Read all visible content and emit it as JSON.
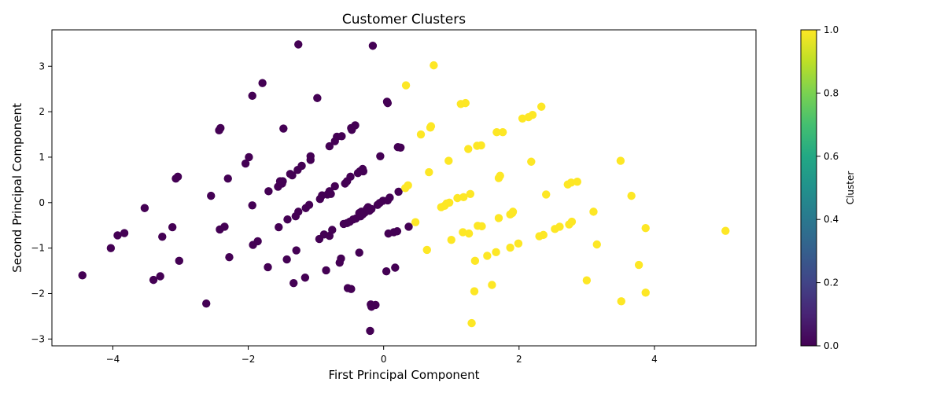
{
  "chart_data": {
    "type": "scatter",
    "title": "Customer Clusters",
    "xlabel": "First Principal Component",
    "ylabel": "Second Principal Component",
    "xlim": [
      -4.9,
      5.5
    ],
    "ylim": [
      -3.15,
      3.8
    ],
    "xticks": [
      -4,
      -2,
      0,
      2,
      4
    ],
    "yticks": [
      -3,
      -2,
      -1,
      0,
      1,
      2,
      3
    ],
    "xtick_labels": [
      "−4",
      "−2",
      "0",
      "2",
      "4"
    ],
    "ytick_labels": [
      "−3",
      "−2",
      "−1",
      "0",
      "1",
      "2",
      "3"
    ],
    "grid": false,
    "colorbar": {
      "label": "Cluster",
      "colormap": "viridis",
      "range": [
        0.0,
        1.0
      ],
      "ticks": [
        0.0,
        0.2,
        0.4,
        0.6,
        0.8,
        1.0
      ],
      "tick_labels": [
        "0.0",
        "0.2",
        "0.4",
        "0.6",
        "0.8",
        "1.0"
      ]
    },
    "colors": {
      "cluster_0": "#440154",
      "cluster_1": "#fde725"
    },
    "series": [
      {
        "cluster": 0,
        "points": [
          [
            -4.45,
            -1.6
          ],
          [
            -4.03,
            -1.0
          ],
          [
            -3.93,
            -0.72
          ],
          [
            -3.83,
            -0.67
          ],
          [
            -3.53,
            -0.12
          ],
          [
            -3.4,
            -1.7
          ],
          [
            -3.3,
            -1.62
          ],
          [
            -3.27,
            -0.75
          ],
          [
            -3.12,
            -0.54
          ],
          [
            -3.07,
            0.53
          ],
          [
            -3.04,
            0.57
          ],
          [
            -3.02,
            -1.28
          ],
          [
            -2.62,
            -2.22
          ],
          [
            -2.55,
            0.15
          ],
          [
            -2.43,
            1.59
          ],
          [
            -2.41,
            1.64
          ],
          [
            -2.42,
            -0.59
          ],
          [
            -2.35,
            -0.53
          ],
          [
            -2.3,
            0.53
          ],
          [
            -2.28,
            -1.2
          ],
          [
            -2.04,
            0.86
          ],
          [
            -1.99,
            1.0
          ],
          [
            -1.94,
            2.35
          ],
          [
            -1.94,
            -0.06
          ],
          [
            -1.93,
            -0.93
          ],
          [
            -1.86,
            -0.85
          ],
          [
            -1.79,
            2.63
          ],
          [
            -1.71,
            -1.42
          ],
          [
            -1.7,
            0.25
          ],
          [
            -1.56,
            0.35
          ],
          [
            -1.55,
            -0.54
          ],
          [
            -1.53,
            0.47
          ],
          [
            -1.5,
            0.42
          ],
          [
            -1.49,
            0.47
          ],
          [
            -1.48,
            1.63
          ],
          [
            -1.43,
            -1.25
          ],
          [
            -1.42,
            -0.37
          ],
          [
            -1.38,
            0.63
          ],
          [
            -1.35,
            0.6
          ],
          [
            -1.33,
            -1.77
          ],
          [
            -1.3,
            -0.3
          ],
          [
            -1.29,
            -1.05
          ],
          [
            -1.27,
            0.72
          ],
          [
            -1.26,
            -0.2
          ],
          [
            -1.26,
            3.48
          ],
          [
            -1.21,
            0.81
          ],
          [
            -1.16,
            -1.65
          ],
          [
            -1.15,
            -0.12
          ],
          [
            -1.1,
            -0.05
          ],
          [
            -1.08,
            1.02
          ],
          [
            -1.08,
            0.94
          ],
          [
            -0.98,
            2.3
          ],
          [
            -0.95,
            -0.8
          ],
          [
            -0.94,
            0.08
          ],
          [
            -0.91,
            0.16
          ],
          [
            -0.88,
            -0.7
          ],
          [
            -0.85,
            -1.49
          ],
          [
            -0.83,
            0.18
          ],
          [
            -0.8,
            1.24
          ],
          [
            -0.8,
            0.25
          ],
          [
            -0.8,
            -0.73
          ],
          [
            -0.78,
            0.19
          ],
          [
            -0.76,
            -0.6
          ],
          [
            -0.72,
            0.36
          ],
          [
            -0.72,
            1.35
          ],
          [
            -0.69,
            1.45
          ],
          [
            -0.65,
            -1.32
          ],
          [
            -0.63,
            -1.23
          ],
          [
            -0.62,
            1.46
          ],
          [
            -0.59,
            -0.47
          ],
          [
            -0.57,
            0.42
          ],
          [
            -0.54,
            0.47
          ],
          [
            -0.54,
            -0.45
          ],
          [
            -0.53,
            -1.88
          ],
          [
            -0.5,
            -0.42
          ],
          [
            -0.49,
            0.57
          ],
          [
            -0.48,
            1.64
          ],
          [
            -0.48,
            -1.9
          ],
          [
            -0.47,
            1.6
          ],
          [
            -0.45,
            -0.37
          ],
          [
            -0.42,
            1.7
          ],
          [
            -0.41,
            -0.35
          ],
          [
            -0.38,
            0.65
          ],
          [
            -0.36,
            -0.23
          ],
          [
            -0.36,
            -1.1
          ],
          [
            -0.35,
            0.69
          ],
          [
            -0.34,
            -0.3
          ],
          [
            -0.33,
            -0.2
          ],
          [
            -0.31,
            0.74
          ],
          [
            -0.31,
            -0.26
          ],
          [
            -0.3,
            0.69
          ],
          [
            -0.28,
            -0.22
          ],
          [
            -0.25,
            -0.14
          ],
          [
            -0.23,
            -0.1
          ],
          [
            -0.21,
            -0.18
          ],
          [
            -0.2,
            -2.82
          ],
          [
            -0.19,
            -2.24
          ],
          [
            -0.18,
            -2.29
          ],
          [
            -0.18,
            -0.14
          ],
          [
            -0.16,
            3.45
          ],
          [
            -0.12,
            -2.25
          ],
          [
            -0.09,
            -0.05
          ],
          [
            -0.06,
            -0.01
          ],
          [
            -0.05,
            1.02
          ],
          [
            -0.01,
            0.04
          ],
          [
            0.04,
            -1.51
          ],
          [
            0.05,
            2.22
          ],
          [
            0.06,
            2.19
          ],
          [
            0.06,
            0.05
          ],
          [
            0.07,
            -0.68
          ],
          [
            0.09,
            0.11
          ],
          [
            0.15,
            -0.65
          ],
          [
            0.17,
            -1.43
          ],
          [
            0.2,
            -0.63
          ],
          [
            0.21,
            1.22
          ],
          [
            0.22,
            0.24
          ],
          [
            0.25,
            1.21
          ],
          [
            0.37,
            -0.53
          ]
        ]
      },
      {
        "cluster": 1,
        "points": [
          [
            0.32,
            0.32
          ],
          [
            0.33,
            2.58
          ],
          [
            0.36,
            0.38
          ],
          [
            0.47,
            -0.43
          ],
          [
            0.55,
            1.5
          ],
          [
            0.64,
            -1.04
          ],
          [
            0.67,
            0.67
          ],
          [
            0.69,
            1.65
          ],
          [
            0.7,
            1.68
          ],
          [
            0.74,
            3.02
          ],
          [
            0.85,
            -0.1
          ],
          [
            0.9,
            -0.07
          ],
          [
            0.93,
            -0.02
          ],
          [
            0.96,
            0.92
          ],
          [
            0.97,
            0.0
          ],
          [
            1.0,
            -0.82
          ],
          [
            1.09,
            0.1
          ],
          [
            1.14,
            2.17
          ],
          [
            1.17,
            -0.65
          ],
          [
            1.18,
            0.12
          ],
          [
            1.21,
            2.19
          ],
          [
            1.25,
            1.18
          ],
          [
            1.26,
            -0.68
          ],
          [
            1.28,
            0.19
          ],
          [
            1.3,
            -2.65
          ],
          [
            1.34,
            -1.95
          ],
          [
            1.35,
            -1.28
          ],
          [
            1.38,
            1.25
          ],
          [
            1.39,
            -0.51
          ],
          [
            1.44,
            1.26
          ],
          [
            1.45,
            -0.52
          ],
          [
            1.53,
            -1.17
          ],
          [
            1.6,
            -1.81
          ],
          [
            1.66,
            -1.09
          ],
          [
            1.67,
            1.55
          ],
          [
            1.7,
            -0.34
          ],
          [
            1.7,
            0.54
          ],
          [
            1.72,
            0.59
          ],
          [
            1.76,
            1.55
          ],
          [
            1.87,
            -0.99
          ],
          [
            1.87,
            -0.26
          ],
          [
            1.9,
            -0.23
          ],
          [
            1.91,
            -0.2
          ],
          [
            1.99,
            -0.9
          ],
          [
            2.05,
            1.85
          ],
          [
            2.14,
            1.88
          ],
          [
            2.18,
            0.9
          ],
          [
            2.2,
            1.93
          ],
          [
            2.3,
            -0.74
          ],
          [
            2.33,
            2.11
          ],
          [
            2.36,
            -0.71
          ],
          [
            2.4,
            0.18
          ],
          [
            2.53,
            -0.58
          ],
          [
            2.6,
            -0.53
          ],
          [
            2.72,
            0.4
          ],
          [
            2.74,
            -0.48
          ],
          [
            2.77,
            0.44
          ],
          [
            2.78,
            -0.42
          ],
          [
            2.86,
            0.46
          ],
          [
            3.0,
            -1.71
          ],
          [
            3.1,
            -0.2
          ],
          [
            3.15,
            -0.92
          ],
          [
            3.5,
            0.92
          ],
          [
            3.51,
            -2.17
          ],
          [
            3.66,
            0.15
          ],
          [
            3.77,
            -1.37
          ],
          [
            3.87,
            -1.98
          ],
          [
            3.87,
            -0.56
          ],
          [
            5.05,
            -0.62
          ]
        ]
      }
    ]
  }
}
